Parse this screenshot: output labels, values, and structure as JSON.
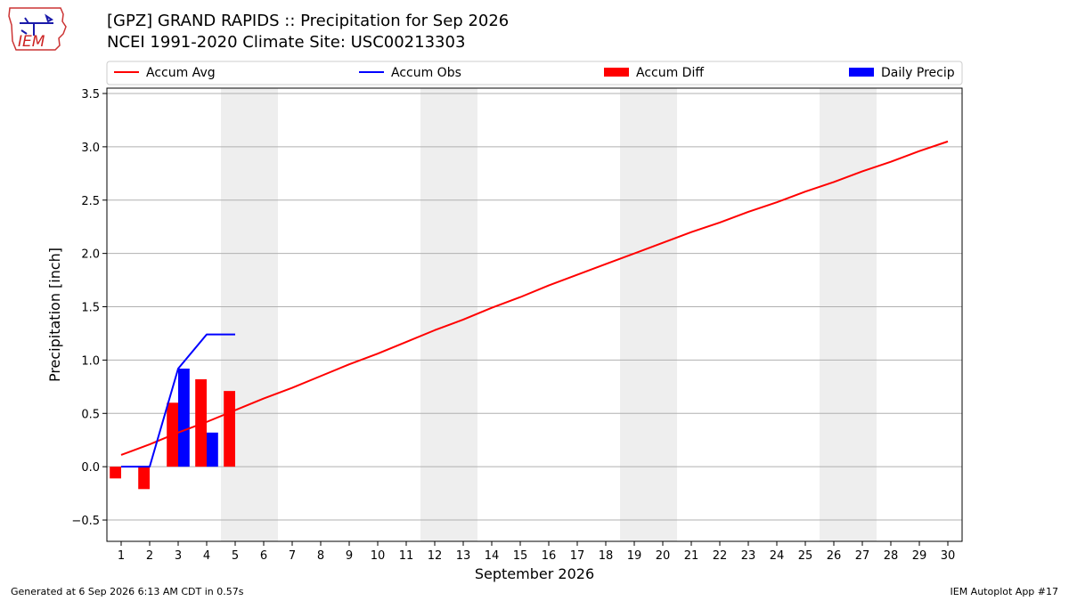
{
  "header": {
    "logo_text": "IEM",
    "title_line1": "[GPZ] GRAND RAPIDS :: Precipitation for Sep 2026",
    "title_line2": "NCEI 1991-2020 Climate Site: USC00213303"
  },
  "footer": {
    "left": "Generated at 6 Sep 2026 6:13 AM CDT in 0.57s",
    "right": "IEM Autoplot App #17"
  },
  "colors": {
    "avg": "#ff0000",
    "obs": "#0000ff",
    "diff": "#ff0000",
    "daily": "#0000ff",
    "weekend_band": "#eeeeee",
    "grid": "#b0b0b0"
  },
  "chart_data": {
    "type": "bar",
    "xlabel": "September 2026",
    "ylabel": "Precipitation [inch]",
    "xlim": [
      0.5,
      30.5
    ],
    "ylim": [
      -0.7,
      3.55
    ],
    "x_ticks": [
      1,
      2,
      3,
      4,
      5,
      6,
      7,
      8,
      9,
      10,
      11,
      12,
      13,
      14,
      15,
      16,
      17,
      18,
      19,
      20,
      21,
      22,
      23,
      24,
      25,
      26,
      27,
      28,
      29,
      30
    ],
    "y_ticks": [
      -0.5,
      0.0,
      0.5,
      1.0,
      1.5,
      2.0,
      2.5,
      3.0,
      3.5
    ],
    "y_tick_labels": [
      "−0.5",
      "0.0",
      "0.5",
      "1.0",
      "1.5",
      "2.0",
      "2.5",
      "3.0",
      "3.5"
    ],
    "grid": "horizontal",
    "legend_position": "top",
    "weekend_days": [
      [
        5,
        6
      ],
      [
        12,
        13
      ],
      [
        19,
        20
      ],
      [
        26,
        27
      ]
    ],
    "series": [
      {
        "name": "Accum Avg",
        "kind": "line",
        "x": [
          1,
          2,
          3,
          4,
          5,
          6,
          7,
          8,
          9,
          10,
          11,
          12,
          13,
          14,
          15,
          16,
          17,
          18,
          19,
          20,
          21,
          22,
          23,
          24,
          25,
          26,
          27,
          28,
          29,
          30
        ],
        "values": [
          0.11,
          0.21,
          0.32,
          0.42,
          0.53,
          0.64,
          0.74,
          0.85,
          0.96,
          1.06,
          1.17,
          1.28,
          1.38,
          1.49,
          1.59,
          1.7,
          1.8,
          1.9,
          2.0,
          2.1,
          2.2,
          2.29,
          2.39,
          2.48,
          2.58,
          2.67,
          2.77,
          2.86,
          2.96,
          3.05
        ]
      },
      {
        "name": "Accum Obs",
        "kind": "line",
        "x": [
          1,
          2,
          3,
          4,
          5
        ],
        "values": [
          0.0,
          0.0,
          0.92,
          1.24,
          1.24
        ]
      },
      {
        "name": "Accum Diff",
        "kind": "bar",
        "x": [
          1,
          2,
          3,
          4,
          5
        ],
        "values": [
          -0.11,
          -0.21,
          0.6,
          0.82,
          0.71
        ]
      },
      {
        "name": "Daily Precip",
        "kind": "bar",
        "x": [
          1,
          2,
          3,
          4,
          5
        ],
        "values": [
          0.0,
          0.0,
          0.92,
          0.32,
          0.0
        ]
      }
    ]
  }
}
